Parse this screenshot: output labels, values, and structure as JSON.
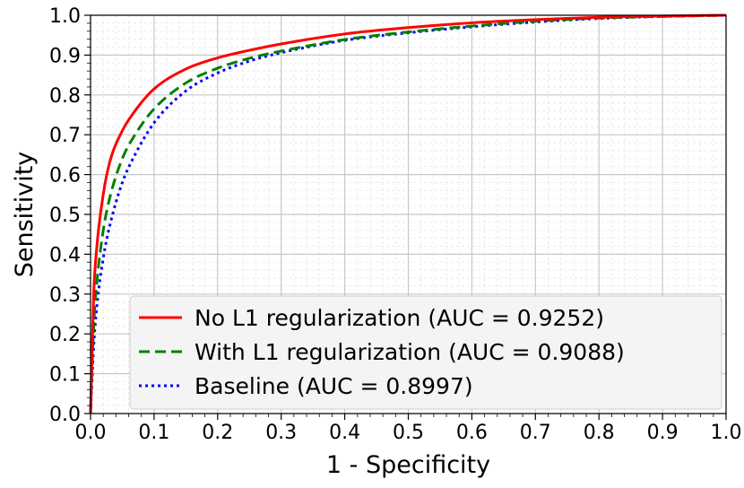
{
  "chart_data": {
    "type": "line",
    "title": "",
    "xlabel": "1 - Specificity",
    "ylabel": "Sensitivity",
    "xlim": [
      0.0,
      1.0
    ],
    "ylim": [
      0.0,
      1.0
    ],
    "x_ticks": [
      "0.0",
      "0.1",
      "0.2",
      "0.3",
      "0.4",
      "0.5",
      "0.6",
      "0.7",
      "0.8",
      "0.9",
      "1.0"
    ],
    "y_ticks": [
      "0.0",
      "0.1",
      "0.2",
      "0.3",
      "0.4",
      "0.5",
      "0.6",
      "0.7",
      "0.8",
      "0.9",
      "1.0"
    ],
    "grid": true,
    "minor_grid": true,
    "legend_position": "lower-right",
    "series": [
      {
        "name": "No L1 regularization (AUC = 0.9252)",
        "color": "#ff0000",
        "style": "solid",
        "x": [
          0,
          0.005,
          0.01,
          0.02,
          0.03,
          0.05,
          0.07,
          0.1,
          0.15,
          0.2,
          0.25,
          0.3,
          0.4,
          0.5,
          0.6,
          0.7,
          0.8,
          0.9,
          1.0
        ],
        "y": [
          0,
          0.3,
          0.42,
          0.55,
          0.63,
          0.71,
          0.76,
          0.815,
          0.865,
          0.893,
          0.912,
          0.928,
          0.953,
          0.969,
          0.981,
          0.989,
          0.995,
          0.998,
          1.0
        ]
      },
      {
        "name": "With L1 regularization (AUC = 0.9088)",
        "color": "#008000",
        "style": "dashed",
        "x": [
          0,
          0.005,
          0.01,
          0.02,
          0.03,
          0.05,
          0.07,
          0.1,
          0.15,
          0.2,
          0.25,
          0.3,
          0.4,
          0.5,
          0.6,
          0.7,
          0.8,
          0.9,
          1.0
        ],
        "y": [
          0,
          0.22,
          0.33,
          0.46,
          0.54,
          0.64,
          0.7,
          0.765,
          0.83,
          0.867,
          0.892,
          0.91,
          0.939,
          0.958,
          0.973,
          0.985,
          0.993,
          0.997,
          1.0
        ]
      },
      {
        "name": "Baseline (AUC = 0.8997)",
        "color": "#0000ff",
        "style": "dotted",
        "x": [
          0,
          0.005,
          0.01,
          0.02,
          0.03,
          0.05,
          0.07,
          0.1,
          0.15,
          0.2,
          0.25,
          0.3,
          0.4,
          0.5,
          0.6,
          0.7,
          0.8,
          0.9,
          1.0
        ],
        "y": [
          0,
          0.17,
          0.27,
          0.39,
          0.47,
          0.58,
          0.65,
          0.73,
          0.81,
          0.855,
          0.885,
          0.906,
          0.937,
          0.956,
          0.971,
          0.983,
          0.992,
          0.997,
          1.0
        ]
      }
    ]
  }
}
